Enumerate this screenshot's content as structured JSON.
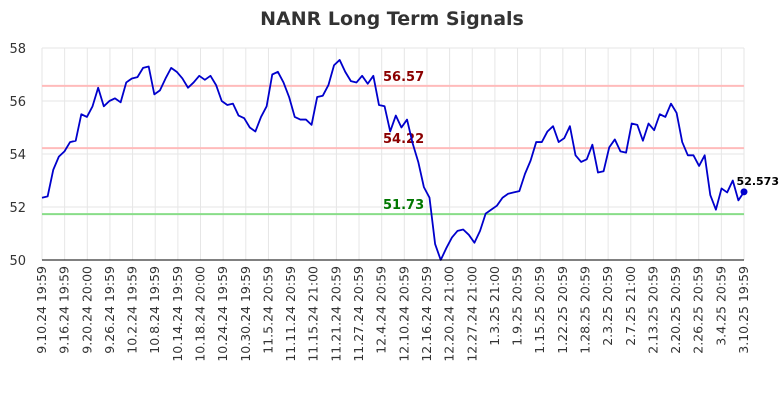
{
  "chart_data": {
    "type": "line",
    "title": "NANR Long Term Signals",
    "xlabel": "",
    "ylabel": "",
    "ylim": [
      50,
      58
    ],
    "yticks": [
      "50",
      "52",
      "54",
      "56",
      "58"
    ],
    "grid": true,
    "x_tick_labels": [
      "9.10.24 19:59",
      "9.16.24 19:59",
      "9.20.24 20:00",
      "9.26.24 19:59",
      "10.2.24 19:59",
      "10.8.24 19:59",
      "10.14.24 19:59",
      "10.18.24 20:00",
      "10.24.24 19:59",
      "10.30.24 19:59",
      "11.5.24 20:59",
      "11.11.24 20:59",
      "11.15.24 21:00",
      "11.21.24 20:59",
      "11.27.24 20:59",
      "12.4.24 20:59",
      "12.10.24 20:59",
      "12.16.24 20:59",
      "12.20.24 21:00",
      "12.27.24 21:00",
      "1.3.25 21:00",
      "1.9.25 20:59",
      "1.15.25 20:59",
      "1.22.25 20:59",
      "1.28.25 20:59",
      "2.3.25 20:59",
      "2.7.25 21:00",
      "2.13.25 20:59",
      "2.20.25 20:59",
      "2.26.25 20:59",
      "3.4.25 20:59",
      "3.10.25 19:59"
    ],
    "series": [
      {
        "color": "#0000cc",
        "values": [
          52.35,
          52.4,
          53.4,
          53.9,
          54.1,
          54.45,
          54.5,
          55.5,
          55.4,
          55.8,
          56.5,
          55.8,
          56.0,
          56.1,
          55.95,
          56.7,
          56.85,
          56.9,
          57.25,
          57.3,
          56.25,
          56.4,
          56.85,
          57.25,
          57.1,
          56.85,
          56.5,
          56.7,
          56.95,
          56.8,
          56.95,
          56.6,
          56.0,
          55.85,
          55.9,
          55.45,
          55.35,
          55.0,
          54.85,
          55.4,
          55.8,
          57.0,
          57.1,
          56.7,
          56.15,
          55.4,
          55.3,
          55.3,
          55.1,
          56.15,
          56.2,
          56.6,
          57.35,
          57.55,
          57.1,
          56.75,
          56.7,
          56.95,
          56.65,
          56.95,
          55.85,
          55.8,
          54.85,
          55.45,
          55.0,
          55.3,
          54.4,
          53.7,
          52.75,
          52.35,
          50.6,
          50.0,
          50.45,
          50.85,
          51.1,
          51.15,
          50.95,
          50.65,
          51.1,
          51.75,
          51.9,
          52.05,
          52.35,
          52.5,
          52.55,
          52.6,
          53.25,
          53.75,
          54.45,
          54.45,
          54.85,
          55.05,
          54.45,
          54.6,
          55.05,
          53.95,
          53.7,
          53.8,
          54.35,
          53.3,
          53.35,
          54.25,
          54.55,
          54.1,
          54.05,
          55.15,
          55.1,
          54.5,
          55.15,
          54.9,
          55.5,
          55.4,
          55.9,
          55.55,
          54.45,
          53.95,
          53.95,
          53.55,
          53.95,
          52.45,
          51.9,
          52.7,
          52.55,
          53.0,
          52.25,
          52.573
        ]
      }
    ],
    "horizontal_lines": [
      {
        "value": 56.57,
        "label": "56.57",
        "line_color": "#ffbbbb",
        "text_color": "#8b0000"
      },
      {
        "value": 54.22,
        "label": "54.22",
        "line_color": "#ffbbbb",
        "text_color": "#8b0000"
      },
      {
        "value": 51.73,
        "label": "51.73",
        "line_color": "#88dd88",
        "text_color": "#007700"
      }
    ],
    "last_value": {
      "value": 52.573,
      "label": "52.573",
      "color": "#0000cc"
    }
  }
}
